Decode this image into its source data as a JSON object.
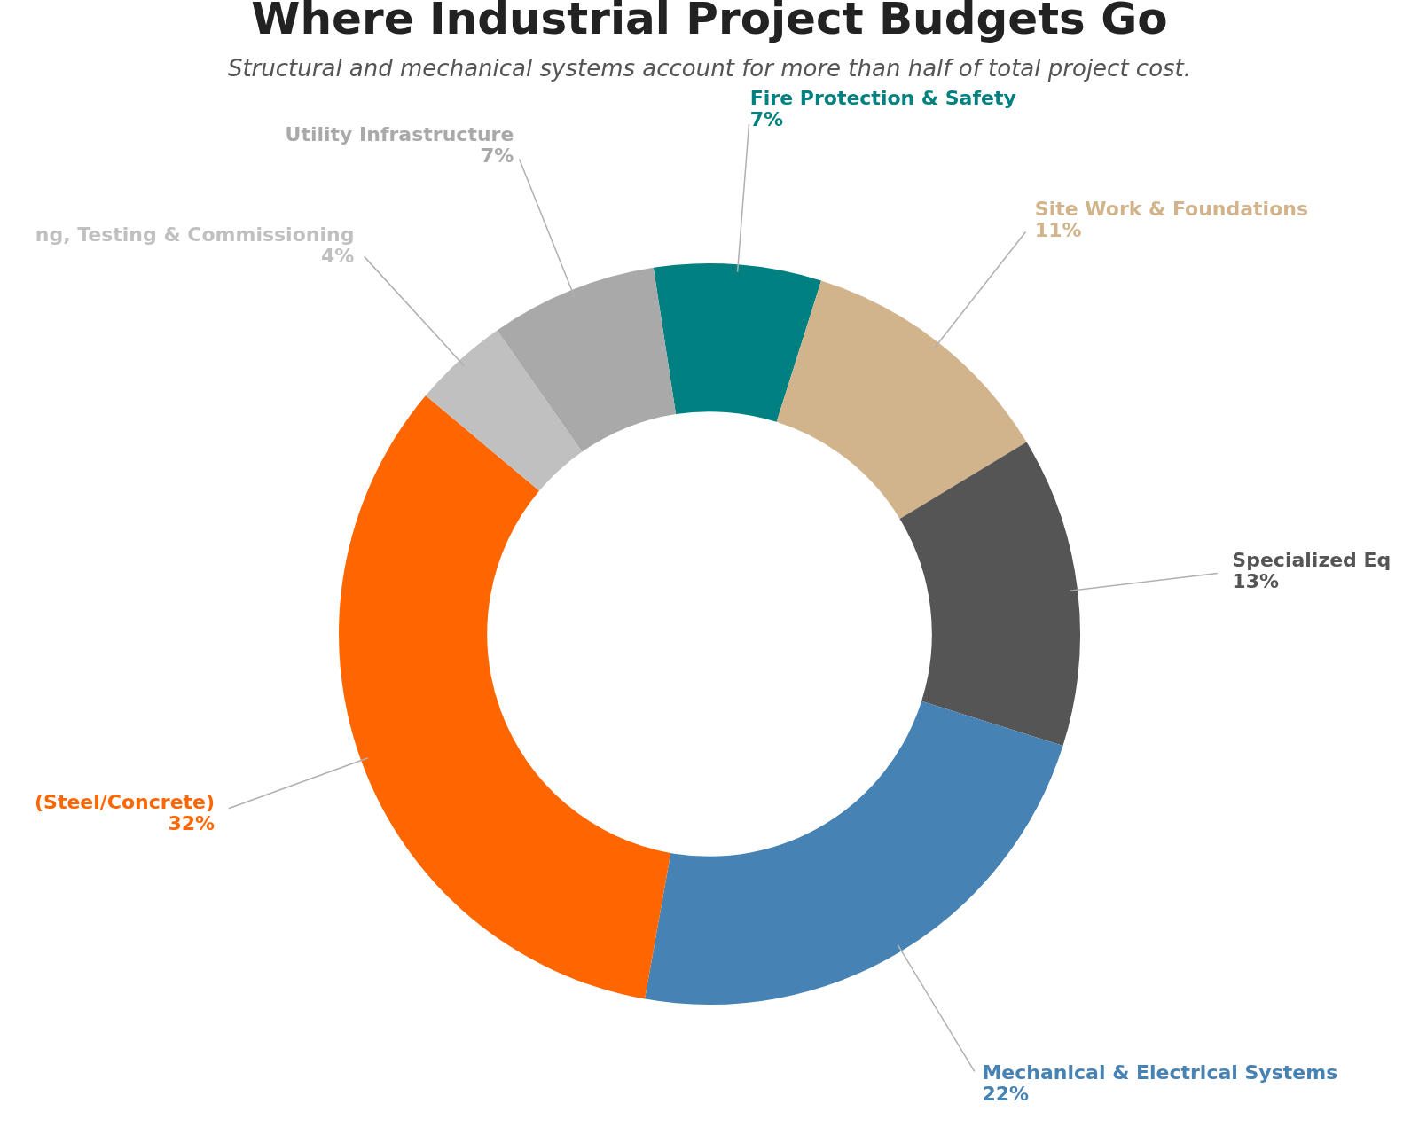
{
  "chart_data": {
    "type": "donut",
    "title": "Where Industrial Project Budgets Go",
    "subtitle": "Structural and mechanical systems account for more than half of total project cost.",
    "categories": [
      "Fire Protection & Safety",
      "Site Work & Foundations",
      "Specialized Eq",
      "Mechanical & Electrical Systems",
      "(Steel/Concrete)",
      "ng, Testing & Commissioning",
      "Utility Infrastructure"
    ],
    "values": [
      7,
      11,
      13,
      22,
      32,
      4,
      7
    ],
    "value_labels": [
      "7%",
      "11%",
      "13%",
      "22%",
      "32%",
      "4%",
      "7%"
    ],
    "colors": [
      "#008080",
      "#d2b48c",
      "#555555",
      "#4682b4",
      "#ff6600",
      "#c0c0c0",
      "#a9a9a9"
    ],
    "legend": false
  }
}
